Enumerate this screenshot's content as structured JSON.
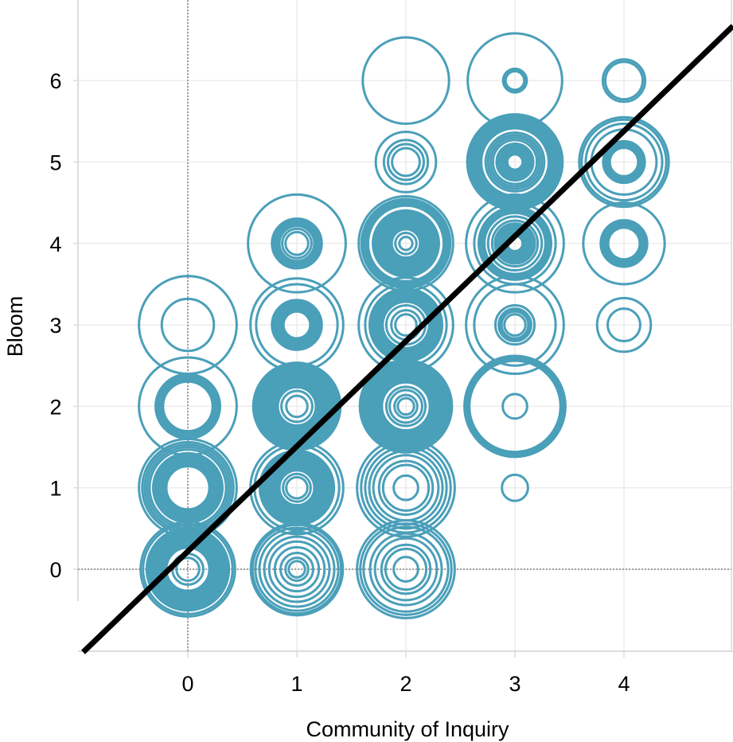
{
  "chart_data": {
    "type": "scatter",
    "subtype": "concentric-ring bubble plot with regression line",
    "title": "",
    "xlabel": "Community of Inquiry",
    "ylabel": "Bloom",
    "xlim": [
      -1,
      5
    ],
    "ylim": [
      -1,
      6.8
    ],
    "x_ticks": [
      0,
      1,
      2,
      3,
      4
    ],
    "y_ticks": [
      0,
      1,
      2,
      3,
      4,
      5,
      6
    ],
    "grid": true,
    "reference_lines": {
      "x": 0,
      "y": 0,
      "style": "dotted"
    },
    "legend": "none",
    "colors": {
      "rings": "#4a9fb9",
      "regression": "#000000",
      "grid": "#ececec",
      "axis": "#dcdcdc",
      "reference": "#a0a0a0"
    },
    "regression_line": {
      "intercept": 0.22,
      "slope": 1.29
    },
    "ring_units": "bubble radius in y-axis data units",
    "points": [
      {
        "x": 0,
        "y": 0,
        "rings": [
          0.14,
          0.19
        ],
        "bands": [
          [
            0.25,
            0.52
          ]
        ],
        "outer_rings": [
          0.55,
          0.58
        ]
      },
      {
        "x": 0,
        "y": 1,
        "rings": [
          0.47,
          0.5,
          0.53,
          0.56,
          0.6
        ],
        "bands": [
          [
            0.25,
            0.44
          ]
        ]
      },
      {
        "x": 0,
        "y": 2,
        "rings": [
          0.6
        ],
        "bands": [
          [
            0.29,
            0.41
          ]
        ]
      },
      {
        "x": 0,
        "y": 3,
        "rings": [
          0.32,
          0.6
        ],
        "bands": []
      },
      {
        "x": 1,
        "y": 0,
        "rings": [
          0.1,
          0.14,
          0.2,
          0.27,
          0.34,
          0.4,
          0.46,
          0.51
        ],
        "bands": [
          [
            0.53,
            0.58
          ]
        ]
      },
      {
        "x": 1,
        "y": 1,
        "rings": [
          0.13,
          0.17,
          0.52,
          0.57
        ],
        "bands": [
          [
            0.2,
            0.47
          ]
        ]
      },
      {
        "x": 1,
        "y": 2,
        "rings": [
          0.13,
          0.19
        ],
        "bands": [
          [
            0.22,
            0.55
          ]
        ]
      },
      {
        "x": 1,
        "y": 3,
        "rings": [
          0.5,
          0.57
        ],
        "bands": [
          [
            0.15,
            0.32
          ]
        ]
      },
      {
        "x": 1,
        "y": 4,
        "rings": [
          0.14,
          0.18,
          0.6
        ],
        "bands": [
          [
            0.2,
            0.32
          ]
        ]
      },
      {
        "x": 2,
        "y": 0,
        "rings": [
          0.15,
          0.25,
          0.3,
          0.38,
          0.44,
          0.52,
          0.56,
          0.6
        ],
        "bands": []
      },
      {
        "x": 2,
        "y": 1,
        "rings": [
          0.15,
          0.28,
          0.33,
          0.4,
          0.45,
          0.5,
          0.55,
          0.6
        ],
        "bands": []
      },
      {
        "x": 2,
        "y": 2,
        "rings": [
          0.1,
          0.14,
          0.2,
          0.24
        ],
        "bands": [
          [
            0.28,
            0.58
          ]
        ]
      },
      {
        "x": 2,
        "y": 3,
        "rings": [
          0.13,
          0.18,
          0.24,
          0.5,
          0.58
        ],
        "bands": [
          [
            0.27,
            0.46
          ]
        ]
      },
      {
        "x": 2,
        "y": 4,
        "rings": [
          0.08,
          0.13,
          0.58
        ],
        "bands": [
          [
            0.16,
            0.42
          ],
          [
            0.45,
            0.56
          ]
        ]
      },
      {
        "x": 2,
        "y": 5,
        "rings": [
          0.17,
          0.22,
          0.27,
          0.37
        ],
        "bands": []
      },
      {
        "x": 2,
        "y": 6,
        "rings": [
          0.53
        ],
        "bands": []
      },
      {
        "x": 3,
        "y": 1,
        "rings": [
          0.16
        ],
        "bands": []
      },
      {
        "x": 3,
        "y": 2,
        "rings": [
          0.15,
          0.56,
          0.58,
          0.6,
          0.62
        ],
        "bands": []
      },
      {
        "x": 3,
        "y": 3,
        "rings": [
          0.13,
          0.2,
          0.24,
          0.5,
          0.6
        ],
        "bands": [
          [
            0.15,
            0.19
          ]
        ]
      },
      {
        "x": 3,
        "y": 4,
        "rings": [
          0.28,
          0.33,
          0.5,
          0.6
        ],
        "bands": [
          [
            0.08,
            0.26
          ],
          [
            0.36,
            0.46
          ]
        ]
      },
      {
        "x": 3,
        "y": 5,
        "rings": [
          0.27,
          0.3,
          0.33,
          0.36
        ],
        "bands": [
          [
            0.08,
            0.24
          ],
          [
            0.4,
            0.6
          ]
        ]
      },
      {
        "x": 3,
        "y": 6,
        "rings": [
          0.58
        ],
        "bands": [
          [
            0.1,
            0.16
          ]
        ]
      },
      {
        "x": 4,
        "y": 3,
        "rings": [
          0.2,
          0.33
        ],
        "bands": []
      },
      {
        "x": 4,
        "y": 4,
        "rings": [
          0.5
        ],
        "bands": [
          [
            0.18,
            0.3
          ]
        ],
        "extra_rings": [
          0.2,
          0.23,
          0.26
        ]
      },
      {
        "x": 4,
        "y": 5,
        "rings": [
          0.4,
          0.47,
          0.52,
          0.55
        ],
        "bands": [
          [
            0.16,
            0.27
          ]
        ]
      },
      {
        "x": 4,
        "y": 6,
        "rings": [
          0.23,
          0.26
        ],
        "bands": []
      }
    ]
  }
}
